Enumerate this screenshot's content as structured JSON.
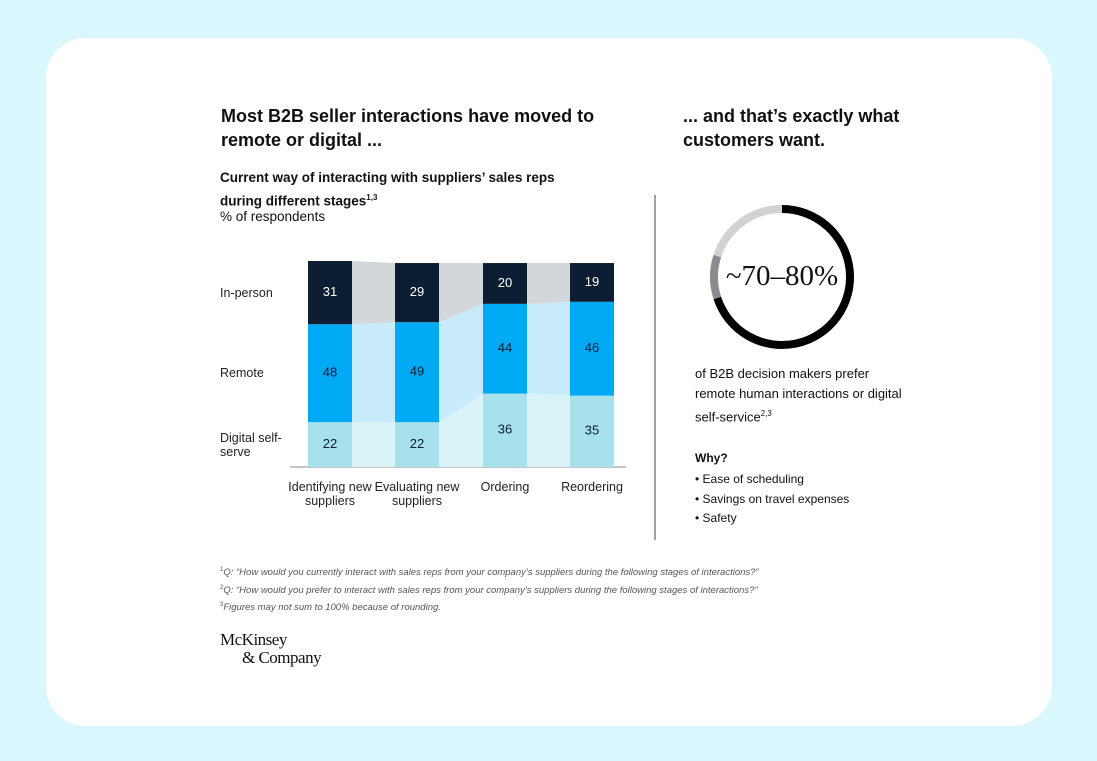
{
  "heading_left": "Most B2B seller interactions have moved to remote or digital ...",
  "heading_right": "... and that’s exactly what customers want.",
  "chart_data": {
    "type": "stacked-bar",
    "title": "Current way of interacting with suppliers’ sales reps during different stages",
    "title_note": "1,3",
    "subtitle": "% of respondents",
    "categories": [
      "Identifying new suppliers",
      "Evaluating new suppliers",
      "Ordering",
      "Reordering"
    ],
    "series": [
      {
        "name": "Digital self-serve",
        "color": "#a6e1ec",
        "band_color": "#daf3f7",
        "values": [
          22,
          22,
          36,
          35
        ]
      },
      {
        "name": "Remote",
        "color": "#00a9f4",
        "band_color": "#c8ebfb",
        "values": [
          48,
          49,
          44,
          46
        ]
      },
      {
        "name": "In-person",
        "color": "#0b1e33",
        "band_color": "#d4d7da",
        "values": [
          31,
          29,
          20,
          19
        ]
      }
    ]
  },
  "donut": {
    "label": "~70–80%",
    "low": 70,
    "high": 80,
    "color": "#000000",
    "range_color": "#8a8d90",
    "rest_color": "#d0d2d4",
    "caption": "of B2B decision makers prefer remote human interactions or digital self-service",
    "caption_note": "2,3"
  },
  "why": {
    "title": "Why?",
    "items": [
      "Ease of scheduling",
      "Savings on travel expenses",
      "Safety"
    ]
  },
  "footnotes": [
    {
      "mark": "1",
      "text": "Q: “How would you currently interact with sales reps from your company’s suppliers during the following stages of interactions?”"
    },
    {
      "mark": "2",
      "text": "Q: “How would you prefer to interact with sales reps from your company’s suppliers during the following stages of interactions?”"
    },
    {
      "mark": "3",
      "text": "Figures may not sum to 100% because of rounding."
    }
  ],
  "logo": [
    "McKinsey",
    "& Company"
  ]
}
